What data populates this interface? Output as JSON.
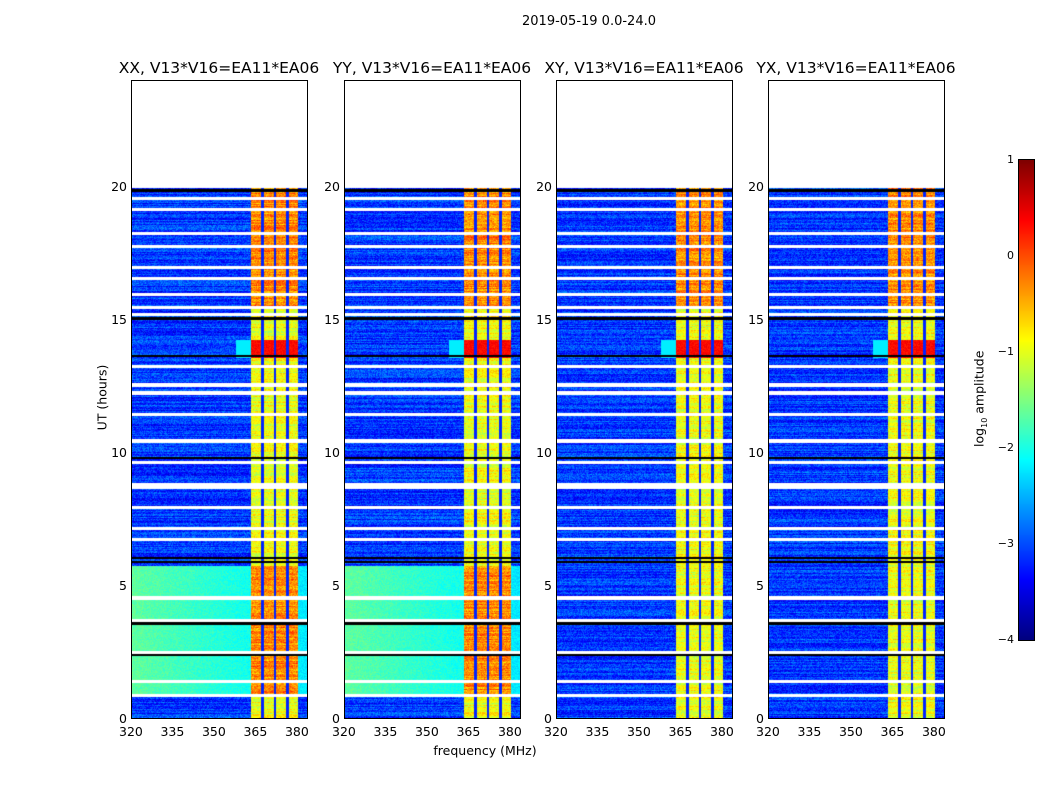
{
  "chart_data": {
    "type": "heatmap",
    "title": "2019-05-19 0.0-24.0",
    "xlabel": "frequency (MHz)",
    "ylabel": "UT (hours)",
    "xlim": [
      320,
      384
    ],
    "ylim": [
      0,
      24
    ],
    "xticks": [
      "320",
      "335",
      "350",
      "365",
      "380"
    ],
    "xtick_values": [
      320,
      335,
      350,
      365,
      380
    ],
    "yticks": [
      "0",
      "5",
      "10",
      "15",
      "20"
    ],
    "ytick_values": [
      0,
      5,
      10,
      15,
      20
    ],
    "data_time_range": [
      0,
      20
    ],
    "panels": [
      {
        "title": "XX, V13*V16=EA11*EA06",
        "low_freq_excess": true
      },
      {
        "title": "YY, V13*V16=EA11*EA06",
        "low_freq_excess": true
      },
      {
        "title": "XY, V13*V16=EA11*EA06",
        "low_freq_excess": false
      },
      {
        "title": "YX, V13*V16=EA11*EA06",
        "low_freq_excess": false
      }
    ],
    "signal_band_mhz": [
      363,
      380
    ],
    "channel_gaps_mhz": [
      367,
      371.5,
      376
    ],
    "bright_interval_hours": [
      13.6,
      14.3
    ],
    "flagged_rows_hours": [
      0.95,
      1.45,
      2.55,
      3.75,
      4.6,
      6.8,
      7.2,
      8.0,
      8.75,
      8.85,
      9.7,
      10.5,
      11.5,
      12.3,
      12.6,
      13.3,
      15.25,
      15.5,
      16.0,
      16.6,
      17.0,
      17.8,
      18.3,
      19.2,
      19.6
    ],
    "dark_rows_hours": [
      2.45,
      3.65,
      5.95,
      6.1,
      9.85,
      13.7,
      15.1,
      19.9
    ],
    "colorbar": {
      "label": "log10 amplitude",
      "label_main": "log",
      "label_sub": "10",
      "label_rest": " amplitude",
      "range": [
        -4,
        1
      ],
      "ticks": [
        "1",
        "0",
        "−1",
        "−2",
        "−3",
        "−4"
      ],
      "tick_values": [
        1,
        0,
        -1,
        -2,
        -3,
        -4
      ],
      "colormap": "jet"
    }
  }
}
